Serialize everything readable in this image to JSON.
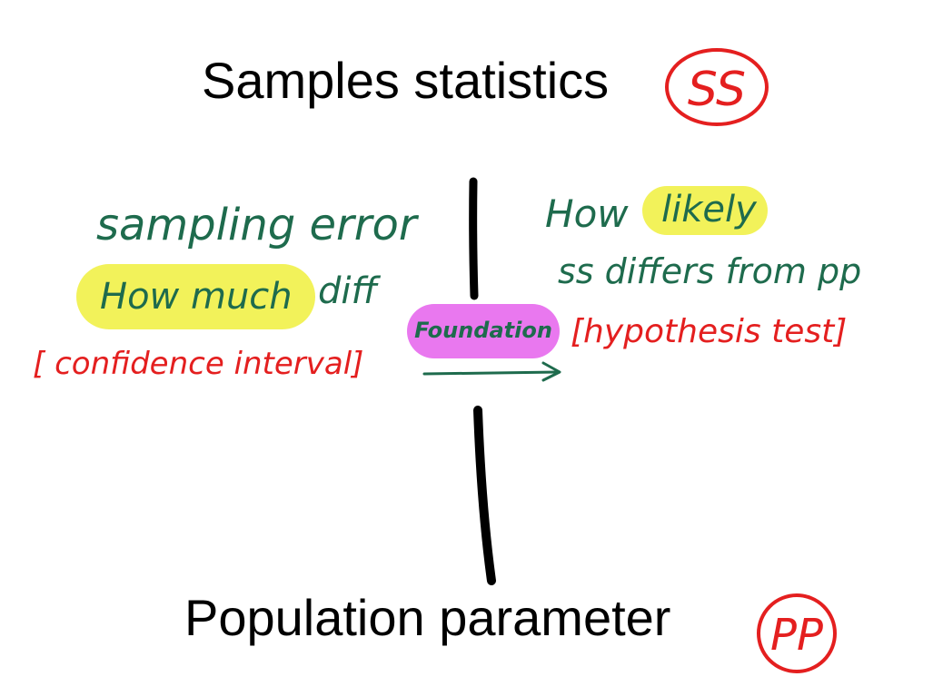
{
  "slide": {
    "top_title": "Samples statistics",
    "bottom_title": "Population parameter",
    "badge_top": "SS",
    "badge_bottom": "PP"
  },
  "left_notes": {
    "line1": "sampling error",
    "line2_highlight": "How much",
    "line2_rest": "diff",
    "line3": "[ confidence  interval]"
  },
  "right_notes": {
    "line1_prefix": "How",
    "line1_highlight": "likely",
    "line2": "ss differs from pp",
    "line3": "[hypothesis test]"
  },
  "center": {
    "foundation_label": "Foundation"
  },
  "colors": {
    "ink_green": "#1e6b4d",
    "ink_red": "#e41f1f",
    "highlight_yellow": "#f2f25a",
    "highlight_magenta": "#e978ef",
    "black": "#000000",
    "background": "#ffffff"
  }
}
